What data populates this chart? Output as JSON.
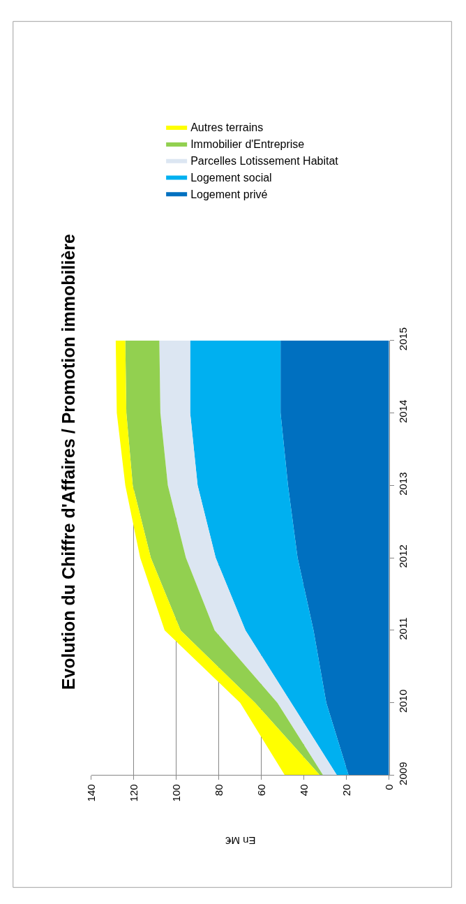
{
  "chart_data": {
    "type": "area",
    "orientation": "horizontal",
    "title": "Evolution du Chiffre d'Affaires / Promotion immobilière",
    "xlabel": "En M€",
    "x": [
      2009,
      2010,
      2011,
      2012,
      2013,
      2014,
      2015
    ],
    "ylim": [
      2009,
      2015
    ],
    "yticks": [
      2009,
      2010,
      2011,
      2012,
      2013,
      2014,
      2015
    ],
    "xlim": [
      140,
      0
    ],
    "xticks": [
      0,
      20,
      40,
      60,
      80,
      100,
      120,
      140
    ],
    "stacked": true,
    "grid": "x",
    "legend": "right",
    "series": [
      {
        "name": "Logement privé",
        "color": "#0070c0",
        "values": [
          19,
          29.5,
          35.5,
          43,
          47.5,
          51,
          51
        ]
      },
      {
        "name": "Logement social",
        "color": "#00b0f0",
        "values": [
          5.5,
          16.5,
          32,
          38.5,
          42.5,
          42.5,
          42.5
        ]
      },
      {
        "name": "Parcelles Lotissement Habitat",
        "color": "#dce6f2",
        "values": [
          6.5,
          6.5,
          14.5,
          14,
          14,
          14,
          14.5
        ]
      },
      {
        "name": "Immobilier d'Entreprise",
        "color": "#92d050",
        "values": [
          1.5,
          10.5,
          16,
          16.5,
          16.5,
          16,
          16
        ]
      },
      {
        "name": "Autres terrains",
        "color": "#ffff00",
        "values": [
          16.5,
          7,
          7.5,
          5,
          3.5,
          4.5,
          4.5
        ]
      }
    ]
  }
}
